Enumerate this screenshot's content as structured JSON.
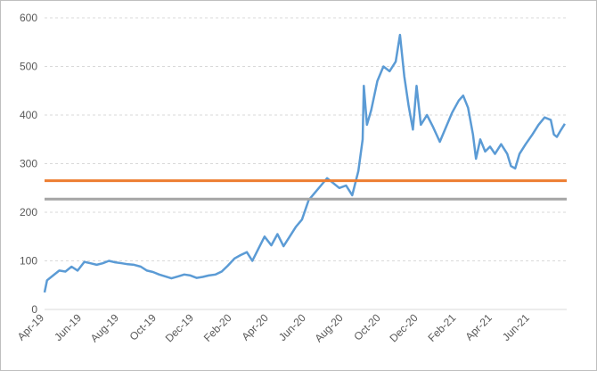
{
  "chart_data": {
    "type": "line",
    "title": "",
    "xlabel": "",
    "ylabel": "",
    "ylim": [
      0,
      600
    ],
    "y_ticks": [
      0,
      100,
      200,
      300,
      400,
      500,
      600
    ],
    "x_tick_labels": [
      "Apr-19",
      "Jun-19",
      "Aug-19",
      "Oct-19",
      "Dec-19",
      "Feb-20",
      "Apr-20",
      "Jun-20",
      "Aug-20",
      "Oct-20",
      "Dec-20",
      "Feb-21",
      "Apr-21",
      "Jun-21"
    ],
    "xlim": [
      "2019-04-01",
      "2021-07-31"
    ],
    "grid": true,
    "legend": "none",
    "series": [
      {
        "color": "#5b9bd5",
        "points": [
          [
            "2019-04-01",
            35
          ],
          [
            "2019-04-05",
            60
          ],
          [
            "2019-04-15",
            70
          ],
          [
            "2019-04-25",
            80
          ],
          [
            "2019-05-05",
            78
          ],
          [
            "2019-05-15",
            88
          ],
          [
            "2019-05-25",
            80
          ],
          [
            "2019-06-05",
            98
          ],
          [
            "2019-06-15",
            95
          ],
          [
            "2019-06-25",
            92
          ],
          [
            "2019-07-05",
            95
          ],
          [
            "2019-07-15",
            100
          ],
          [
            "2019-07-25",
            97
          ],
          [
            "2019-08-05",
            95
          ],
          [
            "2019-08-15",
            93
          ],
          [
            "2019-08-25",
            92
          ],
          [
            "2019-09-05",
            88
          ],
          [
            "2019-09-15",
            80
          ],
          [
            "2019-09-25",
            77
          ],
          [
            "2019-10-05",
            72
          ],
          [
            "2019-10-15",
            68
          ],
          [
            "2019-10-25",
            64
          ],
          [
            "2019-11-05",
            68
          ],
          [
            "2019-11-15",
            72
          ],
          [
            "2019-11-25",
            70
          ],
          [
            "2019-12-05",
            65
          ],
          [
            "2019-12-15",
            67
          ],
          [
            "2019-12-25",
            70
          ],
          [
            "2020-01-05",
            72
          ],
          [
            "2020-01-15",
            78
          ],
          [
            "2020-01-25",
            90
          ],
          [
            "2020-02-05",
            105
          ],
          [
            "2020-02-15",
            112
          ],
          [
            "2020-02-25",
            118
          ],
          [
            "2020-03-05",
            100
          ],
          [
            "2020-03-15",
            125
          ],
          [
            "2020-03-25",
            150
          ],
          [
            "2020-04-05",
            132
          ],
          [
            "2020-04-15",
            155
          ],
          [
            "2020-04-25",
            130
          ],
          [
            "2020-05-05",
            150
          ],
          [
            "2020-05-15",
            170
          ],
          [
            "2020-05-25",
            185
          ],
          [
            "2020-06-05",
            225
          ],
          [
            "2020-06-15",
            240
          ],
          [
            "2020-06-25",
            255
          ],
          [
            "2020-07-05",
            270
          ],
          [
            "2020-07-15",
            260
          ],
          [
            "2020-07-25",
            250
          ],
          [
            "2020-08-05",
            255
          ],
          [
            "2020-08-15",
            235
          ],
          [
            "2020-08-25",
            285
          ],
          [
            "2020-09-01",
            350
          ],
          [
            "2020-09-03",
            460
          ],
          [
            "2020-09-08",
            380
          ],
          [
            "2020-09-15",
            410
          ],
          [
            "2020-09-25",
            470
          ],
          [
            "2020-10-05",
            500
          ],
          [
            "2020-10-15",
            490
          ],
          [
            "2020-10-25",
            510
          ],
          [
            "2020-11-01",
            565
          ],
          [
            "2020-11-08",
            480
          ],
          [
            "2020-11-15",
            420
          ],
          [
            "2020-11-22",
            370
          ],
          [
            "2020-11-28",
            460
          ],
          [
            "2020-12-05",
            380
          ],
          [
            "2020-12-15",
            400
          ],
          [
            "2020-12-25",
            375
          ],
          [
            "2021-01-05",
            345
          ],
          [
            "2021-01-15",
            375
          ],
          [
            "2021-01-25",
            405
          ],
          [
            "2021-02-05",
            430
          ],
          [
            "2021-02-12",
            440
          ],
          [
            "2021-02-20",
            415
          ],
          [
            "2021-02-28",
            360
          ],
          [
            "2021-03-05",
            310
          ],
          [
            "2021-03-12",
            350
          ],
          [
            "2021-03-20",
            325
          ],
          [
            "2021-03-28",
            335
          ],
          [
            "2021-04-05",
            320
          ],
          [
            "2021-04-15",
            340
          ],
          [
            "2021-04-25",
            320
          ],
          [
            "2021-05-01",
            295
          ],
          [
            "2021-05-08",
            290
          ],
          [
            "2021-05-15",
            320
          ],
          [
            "2021-05-25",
            340
          ],
          [
            "2021-06-05",
            360
          ],
          [
            "2021-06-15",
            380
          ],
          [
            "2021-06-25",
            395
          ],
          [
            "2021-07-05",
            390
          ],
          [
            "2021-07-10",
            360
          ],
          [
            "2021-07-15",
            355
          ],
          [
            "2021-07-22",
            370
          ],
          [
            "2021-07-28",
            382
          ]
        ]
      },
      {
        "color": "#ed7d31",
        "points": [
          [
            "2019-04-01",
            265
          ],
          [
            "2021-07-31",
            265
          ]
        ]
      },
      {
        "color": "#a5a5a5",
        "points": [
          [
            "2019-04-01",
            227
          ],
          [
            "2021-07-31",
            227
          ]
        ]
      }
    ]
  }
}
